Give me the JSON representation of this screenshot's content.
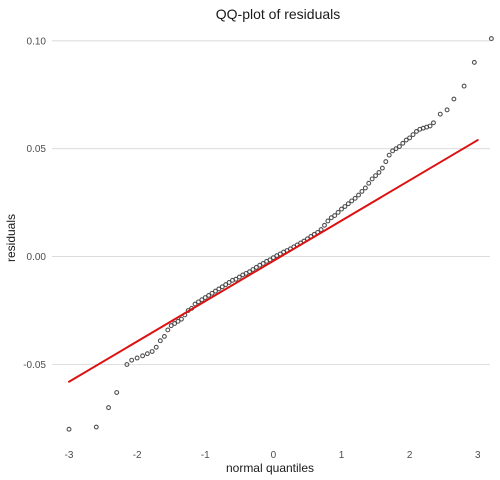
{
  "chart_data": {
    "type": "scatter",
    "title": "QQ-plot of residuals",
    "xlabel": "normal quantiles",
    "ylabel": "residuals",
    "xlim": [
      -3.25,
      3.18
    ],
    "ylim": [
      -0.085,
      0.105
    ],
    "x_ticks": [
      {
        "value": -3,
        "label": "-3"
      },
      {
        "value": -2,
        "label": "-2"
      },
      {
        "value": -1,
        "label": "-1"
      },
      {
        "value": 0,
        "label": "0"
      },
      {
        "value": 1,
        "label": "1"
      },
      {
        "value": 2,
        "label": "2"
      },
      {
        "value": 3,
        "label": "3"
      }
    ],
    "y_ticks": [
      {
        "value": -0.05,
        "label": "-0.05"
      },
      {
        "value": 0,
        "label": "0.00"
      },
      {
        "value": 0.05,
        "label": "0.05"
      },
      {
        "value": 0.1,
        "label": "0.10"
      }
    ],
    "grid": {
      "horizontal": true,
      "vertical": false
    },
    "reference_line": {
      "x": [
        -3,
        3
      ],
      "y": [
        -0.058,
        0.054
      ],
      "color": "#dd1111"
    },
    "point_color": "#333333",
    "points": [
      [
        -3.0,
        -0.08
      ],
      [
        -2.6,
        -0.079
      ],
      [
        -2.42,
        -0.07
      ],
      [
        -2.3,
        -0.063
      ],
      [
        -2.15,
        -0.05
      ],
      [
        -2.08,
        -0.048
      ],
      [
        -2.0,
        -0.047
      ],
      [
        -1.92,
        -0.046
      ],
      [
        -1.85,
        -0.045
      ],
      [
        -1.78,
        -0.044
      ],
      [
        -1.72,
        -0.042
      ],
      [
        -1.66,
        -0.039
      ],
      [
        -1.6,
        -0.037
      ],
      [
        -1.55,
        -0.034
      ],
      [
        -1.5,
        -0.032
      ],
      [
        -1.45,
        -0.031
      ],
      [
        -1.4,
        -0.03
      ],
      [
        -1.35,
        -0.029
      ],
      [
        -1.3,
        -0.027
      ],
      [
        -1.25,
        -0.025
      ],
      [
        -1.2,
        -0.024
      ],
      [
        -1.15,
        -0.022
      ],
      [
        -1.1,
        -0.021
      ],
      [
        -1.05,
        -0.02
      ],
      [
        -1.0,
        -0.019
      ],
      [
        -0.95,
        -0.018
      ],
      [
        -0.9,
        -0.017
      ],
      [
        -0.85,
        -0.016
      ],
      [
        -0.8,
        -0.015
      ],
      [
        -0.75,
        -0.014
      ],
      [
        -0.7,
        -0.013
      ],
      [
        -0.65,
        -0.012
      ],
      [
        -0.6,
        -0.011
      ],
      [
        -0.55,
        -0.0105
      ],
      [
        -0.5,
        -0.0095
      ],
      [
        -0.45,
        -0.0085
      ],
      [
        -0.4,
        -0.0078
      ],
      [
        -0.35,
        -0.007
      ],
      [
        -0.3,
        -0.006
      ],
      [
        -0.25,
        -0.005
      ],
      [
        -0.2,
        -0.004
      ],
      [
        -0.15,
        -0.0032
      ],
      [
        -0.1,
        -0.0022
      ],
      [
        -0.05,
        -0.0015
      ],
      [
        0.0,
        -0.0005
      ],
      [
        0.05,
        0.0004
      ],
      [
        0.1,
        0.0012
      ],
      [
        0.15,
        0.0021
      ],
      [
        0.2,
        0.0028
      ],
      [
        0.25,
        0.0036
      ],
      [
        0.3,
        0.0045
      ],
      [
        0.35,
        0.0054
      ],
      [
        0.4,
        0.0063
      ],
      [
        0.45,
        0.0072
      ],
      [
        0.5,
        0.0082
      ],
      [
        0.55,
        0.0093
      ],
      [
        0.6,
        0.0103
      ],
      [
        0.65,
        0.0112
      ],
      [
        0.7,
        0.0125
      ],
      [
        0.75,
        0.0145
      ],
      [
        0.8,
        0.0165
      ],
      [
        0.85,
        0.018
      ],
      [
        0.9,
        0.019
      ],
      [
        0.95,
        0.0205
      ],
      [
        1.0,
        0.022
      ],
      [
        1.05,
        0.0232
      ],
      [
        1.1,
        0.0245
      ],
      [
        1.15,
        0.0258
      ],
      [
        1.2,
        0.027
      ],
      [
        1.25,
        0.0285
      ],
      [
        1.3,
        0.0302
      ],
      [
        1.35,
        0.0318
      ],
      [
        1.4,
        0.034
      ],
      [
        1.45,
        0.036
      ],
      [
        1.5,
        0.0375
      ],
      [
        1.55,
        0.039
      ],
      [
        1.6,
        0.041
      ],
      [
        1.65,
        0.044
      ],
      [
        1.7,
        0.047
      ],
      [
        1.75,
        0.049
      ],
      [
        1.8,
        0.05
      ],
      [
        1.85,
        0.051
      ],
      [
        1.9,
        0.0525
      ],
      [
        1.95,
        0.054
      ],
      [
        2.0,
        0.055
      ],
      [
        2.05,
        0.0565
      ],
      [
        2.1,
        0.058
      ],
      [
        2.15,
        0.059
      ],
      [
        2.2,
        0.0595
      ],
      [
        2.25,
        0.06
      ],
      [
        2.3,
        0.0605
      ],
      [
        2.35,
        0.062
      ],
      [
        2.45,
        0.066
      ],
      [
        2.55,
        0.068
      ],
      [
        2.65,
        0.073
      ],
      [
        2.8,
        0.079
      ],
      [
        2.95,
        0.09
      ],
      [
        3.2,
        0.101
      ]
    ]
  }
}
